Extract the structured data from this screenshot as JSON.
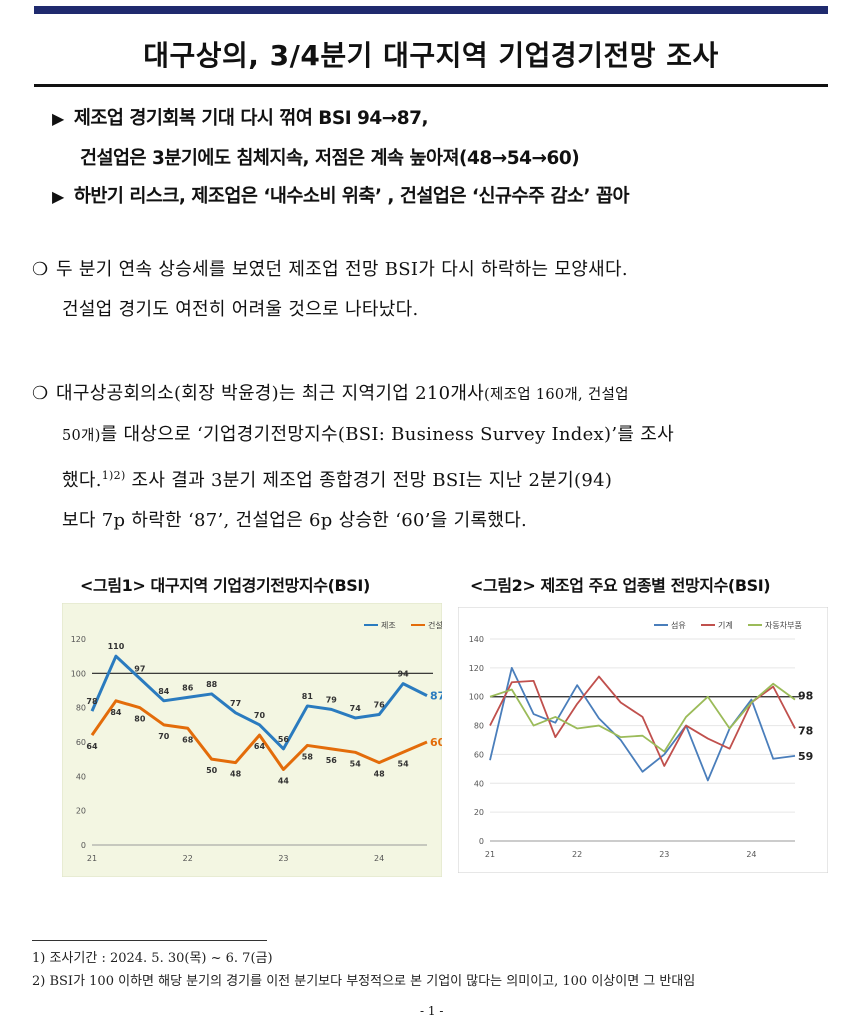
{
  "title": "대구상의, 3/4분기 대구지역 기업경기전망 조사",
  "subtitles": {
    "line1": "제조업 경기회복 기대 다시 꺾여 BSI 94→87,",
    "line2": "건설업은 3분기에도 침체지속, 저점은 계속 높아져(48→54→60)",
    "line3": "하반기 리스크, 제조업은 ‘내수소비 위축’ , 건설업은 ‘신규수주 감소’ 꼽아",
    "bullet": "▶"
  },
  "paragraphs": {
    "bullet": "❍",
    "p1_line1": "두 분기 연속 상승세를 보였던 제조업 전망 BSI가 다시 하락하는 모양새다.",
    "p1_line2": "건설업 경기도 여전히 어려울 것으로 나타났다.",
    "p2_line1_a": "대구상공회의소(회장 박윤경)는 최근 지역기업 210개사",
    "p2_line1_b": "(제조업 160개, 건설업",
    "p2_line2_a": "50개)",
    "p2_line2_b": "를 대상으로 ‘기업경기전망지수(BSI: Business Survey Index)’를 조사",
    "p2_line3_a": "했다.",
    "p2_line3_sup": "1)2)",
    "p2_line3_b": " 조사 결과 3분기 제조업 종합경기 전망 BSI는 지난 2분기(94)",
    "p2_line4": "보다 7p 하락한 ‘87’, 건설업은 6p 상승한 ‘60’을 기록했다."
  },
  "figure1": {
    "caption": "<그림1> 대구지역 기업경기전망지수(BSI)"
  },
  "figure2": {
    "caption": "<그림2> 제조업 주요 업종별 전망지수(BSI)"
  },
  "chart_data": [
    {
      "type": "line",
      "x": [
        "21",
        "",
        "",
        "",
        "22",
        "",
        "",
        "",
        "23",
        "",
        "",
        "",
        "24",
        "",
        ""
      ],
      "ylim": [
        0,
        120
      ],
      "yticks": [
        "0",
        "20",
        "40",
        "60",
        "80",
        "100",
        "120"
      ],
      "reference_line": 100,
      "legend_position": "top-right",
      "series": [
        {
          "name": "제조",
          "color": "#2a7bbf",
          "values": [
            78,
            110,
            97,
            84,
            86,
            88,
            77,
            70,
            56,
            81,
            79,
            74,
            76,
            94,
            87
          ],
          "end_label": "87"
        },
        {
          "name": "건설",
          "color": "#e36c0a",
          "values": [
            64,
            84,
            80,
            70,
            68,
            50,
            48,
            64,
            44,
            58,
            56,
            54,
            48,
            54,
            60
          ],
          "end_label": "60"
        }
      ]
    },
    {
      "type": "line",
      "x": [
        "21",
        "",
        "",
        "",
        "22",
        "",
        "",
        "",
        "23",
        "",
        "",
        "",
        "24",
        "",
        ""
      ],
      "ylim": [
        0,
        140
      ],
      "yticks": [
        "0",
        "20",
        "40",
        "60",
        "80",
        "100",
        "120",
        "140"
      ],
      "reference_line": 100,
      "legend_position": "top-right",
      "series": [
        {
          "name": "섬유",
          "color": "#4a7ebb",
          "values": [
            56,
            120,
            88,
            82,
            108,
            85,
            70,
            48,
            60,
            80,
            42,
            78,
            98,
            57,
            59
          ],
          "end_label": "59"
        },
        {
          "name": "기계",
          "color": "#c0504d",
          "values": [
            80,
            110,
            111,
            72,
            95,
            114,
            96,
            86,
            52,
            80,
            71,
            64,
            96,
            107,
            78
          ],
          "end_label": "78"
        },
        {
          "name": "자동차부품",
          "color": "#9bbb59",
          "values": [
            100,
            105,
            80,
            86,
            78,
            80,
            72,
            73,
            62,
            86,
            100,
            78,
            96,
            109,
            98
          ],
          "end_label": "98"
        }
      ]
    }
  ],
  "footnotes": {
    "f1": "1) 조사기간 : 2024. 5. 30(목) ~ 6. 7(금)",
    "f2": "2) BSI가 100 이하면 해당 분기의 경기를 이전 분기보다 부정적으로 본 기업이 많다는 의미이고, 100 이상이면 그 반대임"
  },
  "page_number": "- 1 -"
}
